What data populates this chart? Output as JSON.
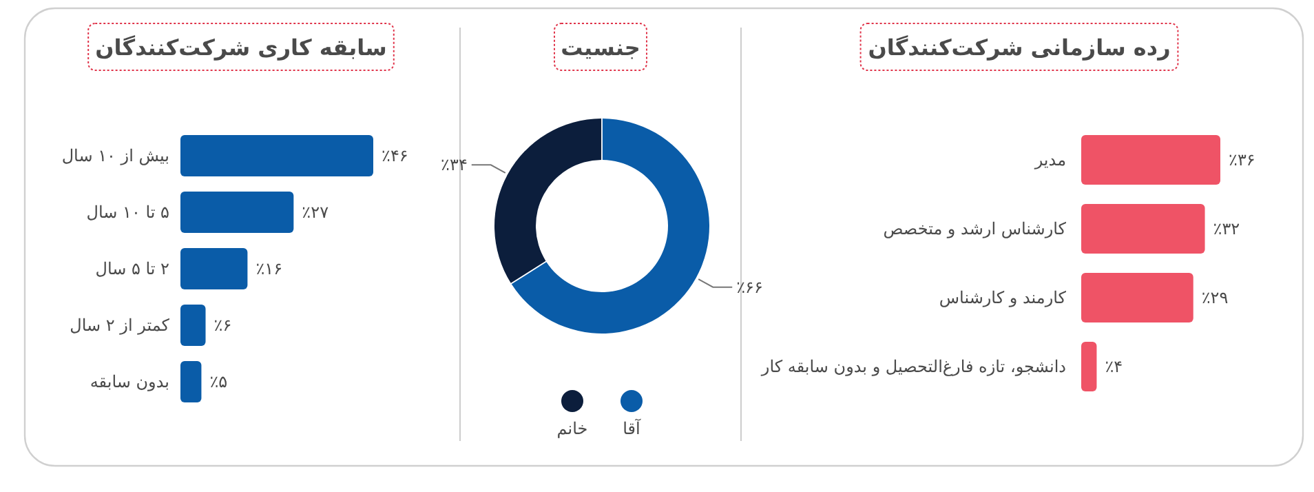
{
  "chart_data": [
    {
      "type": "bar",
      "orientation": "horizontal",
      "title": "رده سازمانی شرکت‌کنندگان",
      "categories": [
        "مدیر",
        "کارشناس ارشد و متخصص",
        "کارمند و کارشناس",
        "دانشجو، تازه فارغ‌التحصیل و بدون سابقه کار"
      ],
      "values": [
        36,
        32,
        29,
        4
      ],
      "value_labels": [
        "٪۳۶",
        "٪۳۲",
        "٪۲۹",
        "٪۴"
      ],
      "color": "#ef5366"
    },
    {
      "type": "donut",
      "title": "جنسیت",
      "categories": [
        "آقا",
        "خانم"
      ],
      "values": [
        66,
        34
      ],
      "value_labels": [
        "٪۶۶",
        "٪۳۴"
      ],
      "colors": [
        "#0a5ca8",
        "#0c1e3c"
      ],
      "legend": "bottom"
    },
    {
      "type": "bar",
      "orientation": "horizontal",
      "title": "سابقه کاری شرکت‌کنندگان",
      "categories": [
        "بیش از ۱۰ سال",
        "۵ تا ۱۰ سال",
        "۲ تا ۵ سال",
        "کمتر از ۲ سال",
        "بدون سابقه"
      ],
      "values": [
        46,
        27,
        16,
        6,
        5
      ],
      "value_labels": [
        "٪۴۶",
        "٪۲۷",
        "٪۱۶",
        "٪۶",
        "٪۵"
      ],
      "color": "#0a5ca8"
    }
  ]
}
